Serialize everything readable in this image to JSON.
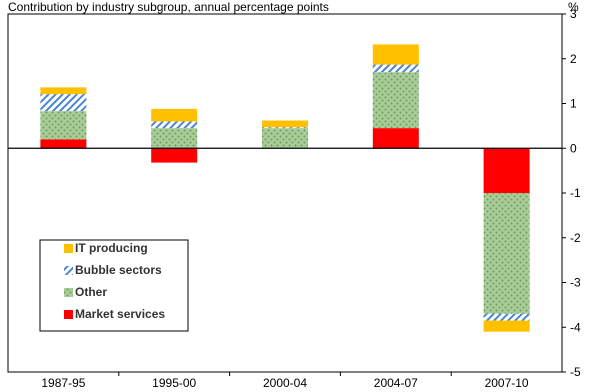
{
  "chart_data": {
    "type": "bar",
    "stacked": true,
    "subtitle": "Contribution by industry subgroup, annual percentage points",
    "unit": "%",
    "categories": [
      "1987-95",
      "1995-00",
      "2000-04",
      "2004-07",
      "2007-10"
    ],
    "ylim": [
      -5,
      3
    ],
    "yticks": [
      "3",
      "2",
      "1",
      "0",
      "-1",
      "-2",
      "-3",
      "-4",
      "-5"
    ],
    "legend_position": "bottom-left",
    "grid": false,
    "series": [
      {
        "name": "Market services",
        "color": "#ff0000",
        "pattern": "solid",
        "values": [
          0.2,
          -0.32,
          0.0,
          0.45,
          -1.0
        ]
      },
      {
        "name": "Other",
        "color": "#a9cc98",
        "pattern": "dots",
        "values": [
          0.63,
          0.45,
          0.45,
          1.25,
          -2.7
        ]
      },
      {
        "name": "Bubble sectors",
        "color": "#4a86d4",
        "pattern": "diagonal",
        "values": [
          0.38,
          0.15,
          0.02,
          0.17,
          -0.15
        ]
      },
      {
        "name": "IT producing",
        "color": "#ffc000",
        "pattern": "solid",
        "values": [
          0.15,
          0.28,
          0.15,
          0.45,
          -0.25
        ]
      }
    ],
    "legend_order": [
      "IT producing",
      "Bubble sectors",
      "Other",
      "Market services"
    ]
  }
}
